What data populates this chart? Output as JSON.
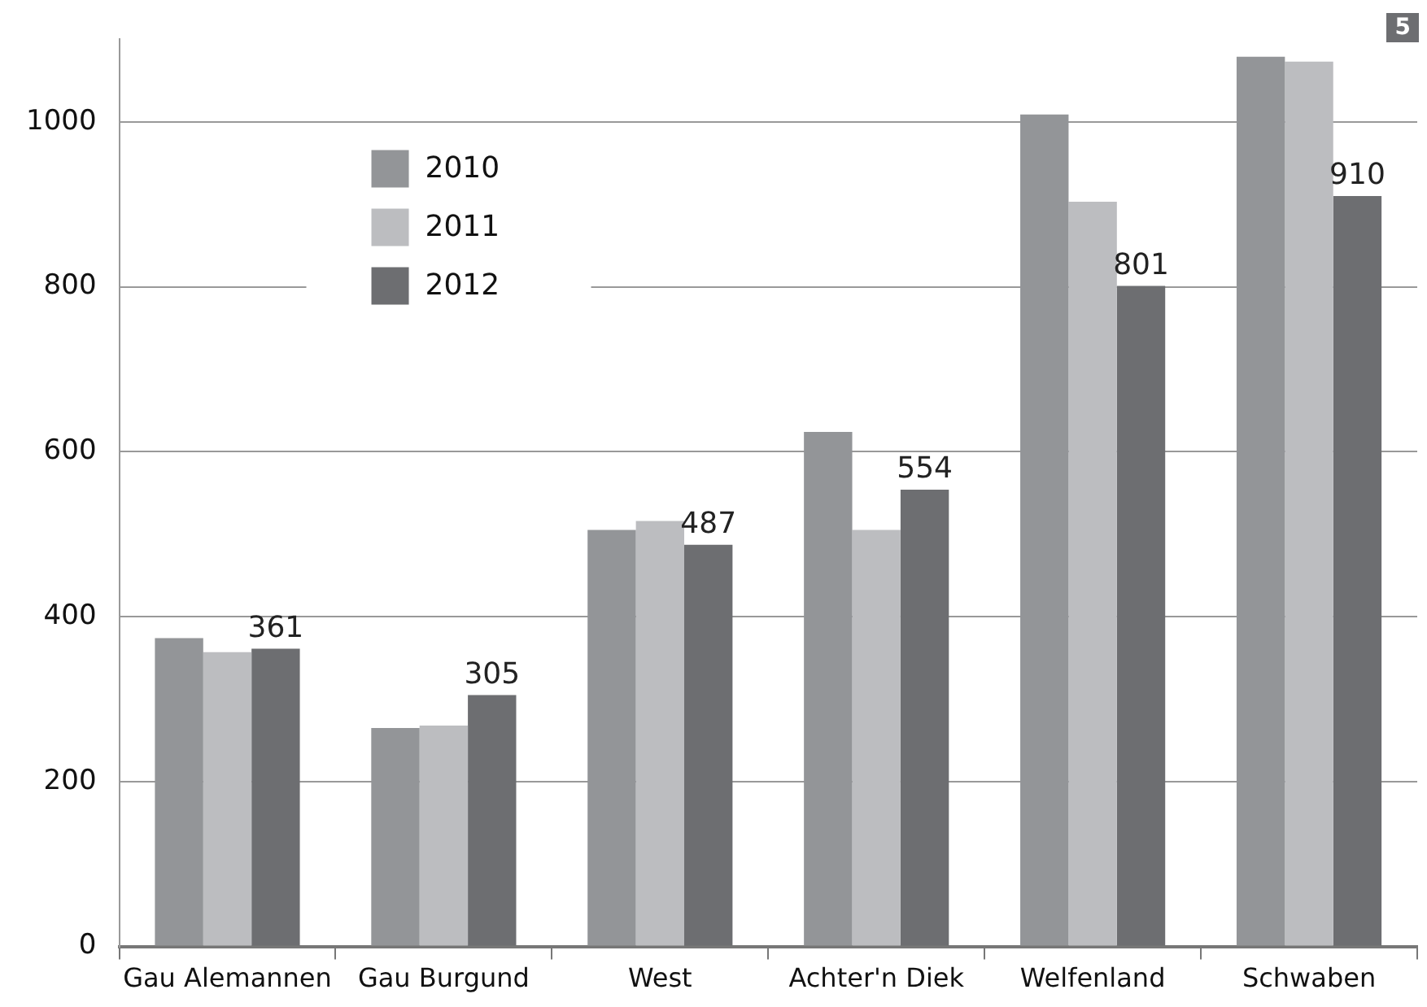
{
  "chart_data": {
    "type": "bar",
    "categories": [
      "Gau Alemannen",
      "Gau Burgund",
      "West",
      "Achter'n Diek",
      "Welfenland",
      "Schwaben"
    ],
    "series": [
      {
        "name": "2010",
        "color": "#939598",
        "values": [
          374,
          265,
          505,
          624,
          1009,
          1079
        ]
      },
      {
        "name": "2011",
        "color": "#bcbdc0",
        "values": [
          357,
          268,
          516,
          505,
          903,
          1073
        ]
      },
      {
        "name": "2012",
        "color": "#6d6e71",
        "values": [
          361,
          305,
          487,
          554,
          801,
          910
        ],
        "value_labels": [
          "361",
          "305",
          "487",
          "554",
          "801",
          "910"
        ]
      }
    ],
    "ylim": [
      0,
      1100
    ],
    "yticks": [
      0,
      200,
      400,
      600,
      800,
      1000
    ],
    "grid": "y",
    "legend": "top left",
    "annotations": [
      "5"
    ]
  }
}
